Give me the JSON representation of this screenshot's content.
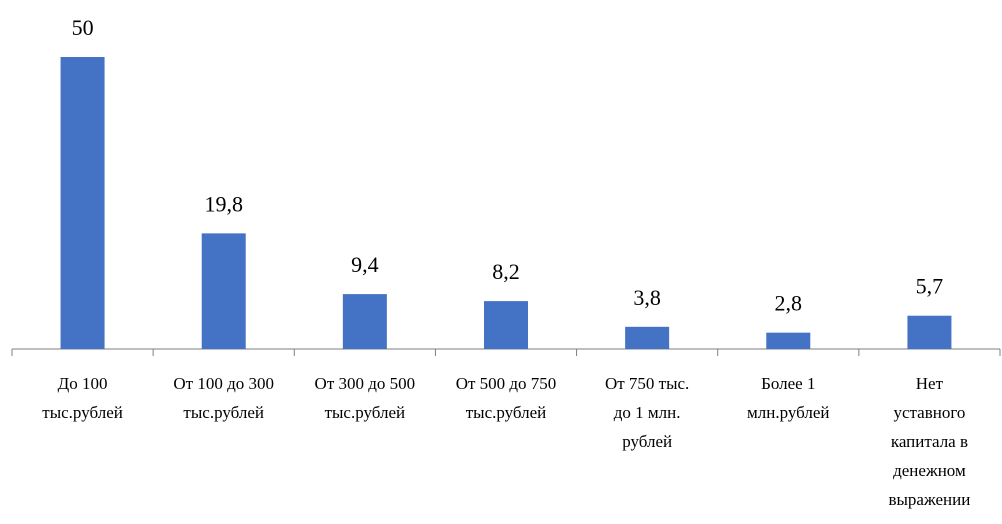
{
  "chart_data": {
    "type": "bar",
    "categories": [
      [
        "До 100",
        "тыс.рублей"
      ],
      [
        "От 100 до 300",
        "тыс.рублей"
      ],
      [
        "От 300 до 500",
        "тыс.рублей"
      ],
      [
        "От 500 до 750",
        "тыс.рублей"
      ],
      [
        "От 750 тыс.",
        "до 1 млн.",
        "рублей"
      ],
      [
        "Более 1",
        "млн.рублей"
      ],
      [
        "Нет",
        "уставного",
        "капитала в",
        "денежном",
        "выражении"
      ]
    ],
    "values": [
      50,
      19.8,
      9.4,
      8.2,
      3.8,
      2.8,
      5.7
    ],
    "data_labels": [
      "50",
      "19,8",
      "9,4",
      "8,2",
      "3,8",
      "2,8",
      "5,7"
    ],
    "ylim": [
      0,
      50
    ],
    "grid": false,
    "legend": "none",
    "colors": {
      "bar": "#4472C4",
      "axis": "#7F7F7F"
    }
  }
}
